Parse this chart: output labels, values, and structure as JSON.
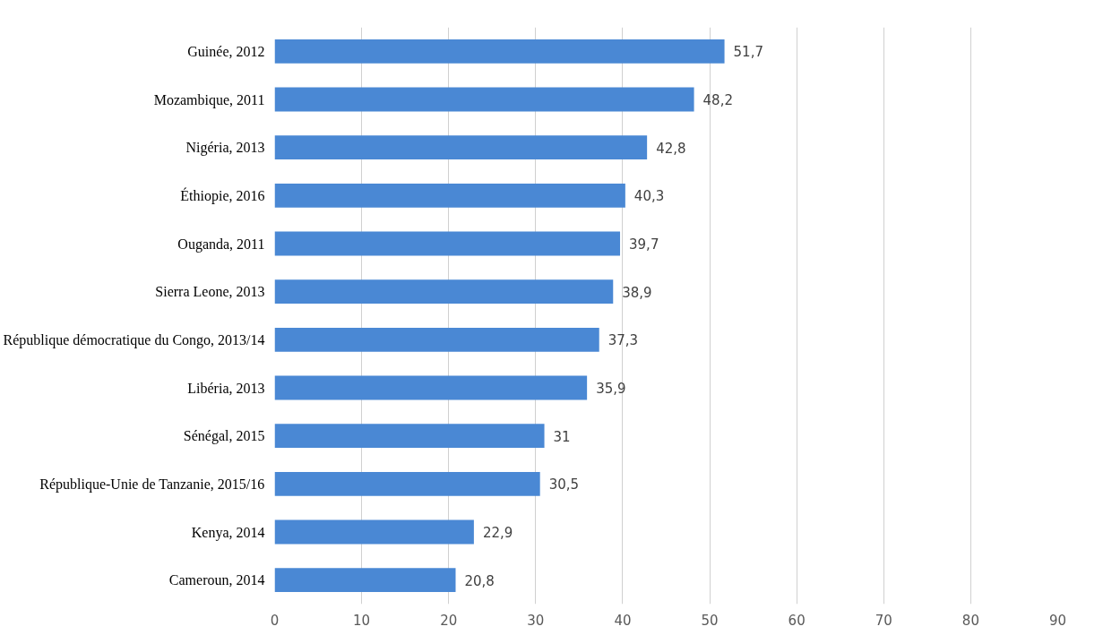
{
  "chart_data": {
    "type": "bar",
    "orientation": "horizontal",
    "categories": [
      "Guinée, 2012",
      "Mozambique, 2011",
      "Nigéria, 2013",
      "Éthiopie, 2016",
      "Ouganda, 2011",
      "Sierra Leone, 2013",
      "République démocratique du Congo, 2013/14",
      "Libéria, 2013",
      "Sénégal, 2015",
      "République-Unie de Tanzanie, 2015/16",
      "Kenya, 2014",
      "Cameroun, 2014"
    ],
    "values": [
      51.7,
      48.2,
      42.8,
      40.3,
      39.7,
      38.9,
      37.3,
      35.9,
      31,
      30.5,
      22.9,
      20.8
    ],
    "value_labels": [
      "51,7",
      "48,2",
      "42,8",
      "40,3",
      "39,7",
      "38,9",
      "37,3",
      "35,9",
      "31",
      "30,5",
      "22,9",
      "20,8"
    ],
    "color": "#4a88d4",
    "xlim": [
      0,
      90
    ],
    "xticks": [
      0,
      10,
      20,
      30,
      40,
      50,
      60,
      70,
      80,
      90
    ],
    "grid": "x"
  }
}
